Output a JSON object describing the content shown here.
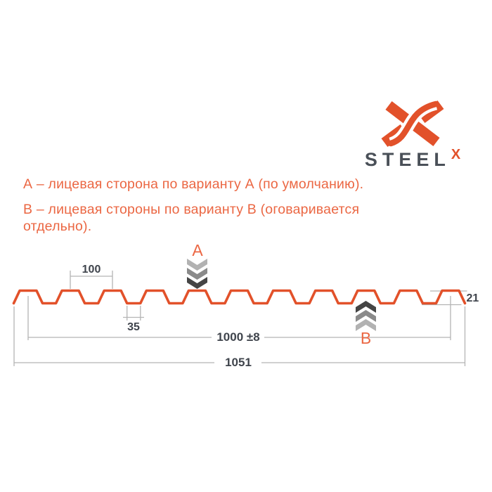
{
  "brand": {
    "name": "STEEL",
    "x_suffix": "X"
  },
  "notes": {
    "line_a": "А – лицевая сторона по варианту А (по умолчанию).",
    "line_b": "В – лицевая стороны по варианту В (оговаривается отдельно)."
  },
  "markers": {
    "a": "A",
    "b": "B"
  },
  "dimensions": {
    "rib_pitch": "100",
    "rib_bottom_width": "35",
    "profile_height": "21",
    "working_width": "1000 ±8",
    "overall_width": "1051"
  },
  "colors": {
    "accent-orange": "#e2512a",
    "text-orange": "#eb6743",
    "dark-text": "#3f444c",
    "steel-gray": "#4a5058",
    "line-gray": "#b4b4b4",
    "chev-light": "#b2b2b2",
    "chev-mid": "#8a8a8a",
    "chev-dark": "#454545"
  }
}
